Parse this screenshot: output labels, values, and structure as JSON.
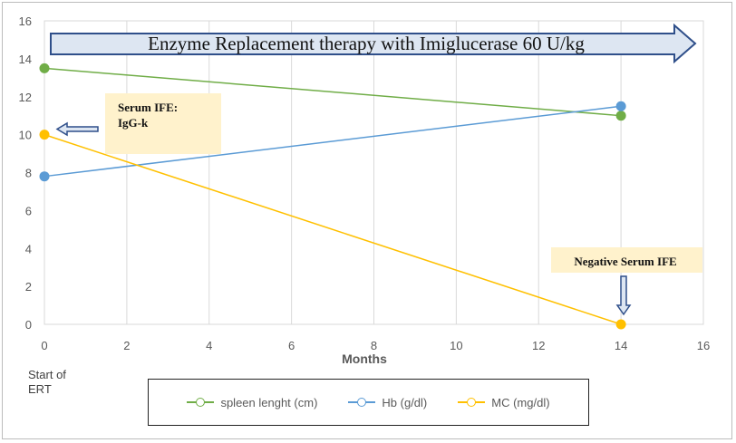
{
  "chart_data": {
    "type": "line",
    "xlabel": "Months",
    "xlim": [
      0,
      16
    ],
    "ylim": [
      0,
      16
    ],
    "xticks": [
      0,
      2,
      4,
      6,
      8,
      10,
      12,
      14,
      16
    ],
    "yticks": [
      0,
      2,
      4,
      6,
      8,
      10,
      12,
      14,
      16
    ],
    "grid": "vertical",
    "legend_position": "bottom",
    "series": [
      {
        "name": "spleen lenght (cm)",
        "color": "#70AD47",
        "x": [
          0,
          14
        ],
        "y": [
          13.5,
          11
        ]
      },
      {
        "name": "Hb (g/dl)",
        "color": "#5B9BD5",
        "x": [
          0,
          14
        ],
        "y": [
          7.8,
          11.5
        ]
      },
      {
        "name": "MC (mg/dl)",
        "color": "#FFC000",
        "x": [
          0,
          14
        ],
        "y": [
          10,
          0
        ]
      }
    ],
    "annotations": {
      "banner": "Enzyme Replacement therapy with Imiglucerase  60 U/kg",
      "serum_ife_line1": "Serum IFE:",
      "serum_ife_line2": "IgG-k",
      "negative_ife": "Negative Serum IFE",
      "start_note": "Start of ERT"
    }
  }
}
